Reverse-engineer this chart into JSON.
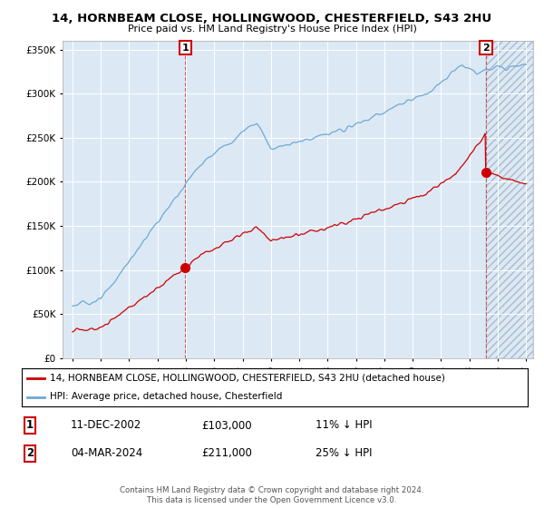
{
  "title": "14, HORNBEAM CLOSE, HOLLINGWOOD, CHESTERFIELD, S43 2HU",
  "subtitle": "Price paid vs. HM Land Registry's House Price Index (HPI)",
  "legend_label_red": "14, HORNBEAM CLOSE, HOLLINGWOOD, CHESTERFIELD, S43 2HU (detached house)",
  "legend_label_blue": "HPI: Average price, detached house, Chesterfield",
  "point1_label": "11-DEC-2002",
  "point1_price": "£103,000",
  "point1_hpi": "11% ↓ HPI",
  "point1_value": 103000,
  "point1_year": 2002.95,
  "point2_label": "04-MAR-2024",
  "point2_price": "£211,000",
  "point2_hpi": "25% ↓ HPI",
  "point2_value": 211000,
  "point2_year": 2024.17,
  "footer": "Contains HM Land Registry data © Crown copyright and database right 2024.\nThis data is licensed under the Open Government Licence v3.0.",
  "ylim": [
    0,
    360000
  ],
  "yticks": [
    0,
    50000,
    100000,
    150000,
    200000,
    250000,
    300000,
    350000
  ],
  "bg_color": "#ffffff",
  "plot_bg_color": "#dce9f5",
  "grid_color": "#ffffff",
  "red_color": "#cc0000",
  "blue_color": "#6fa8d5"
}
